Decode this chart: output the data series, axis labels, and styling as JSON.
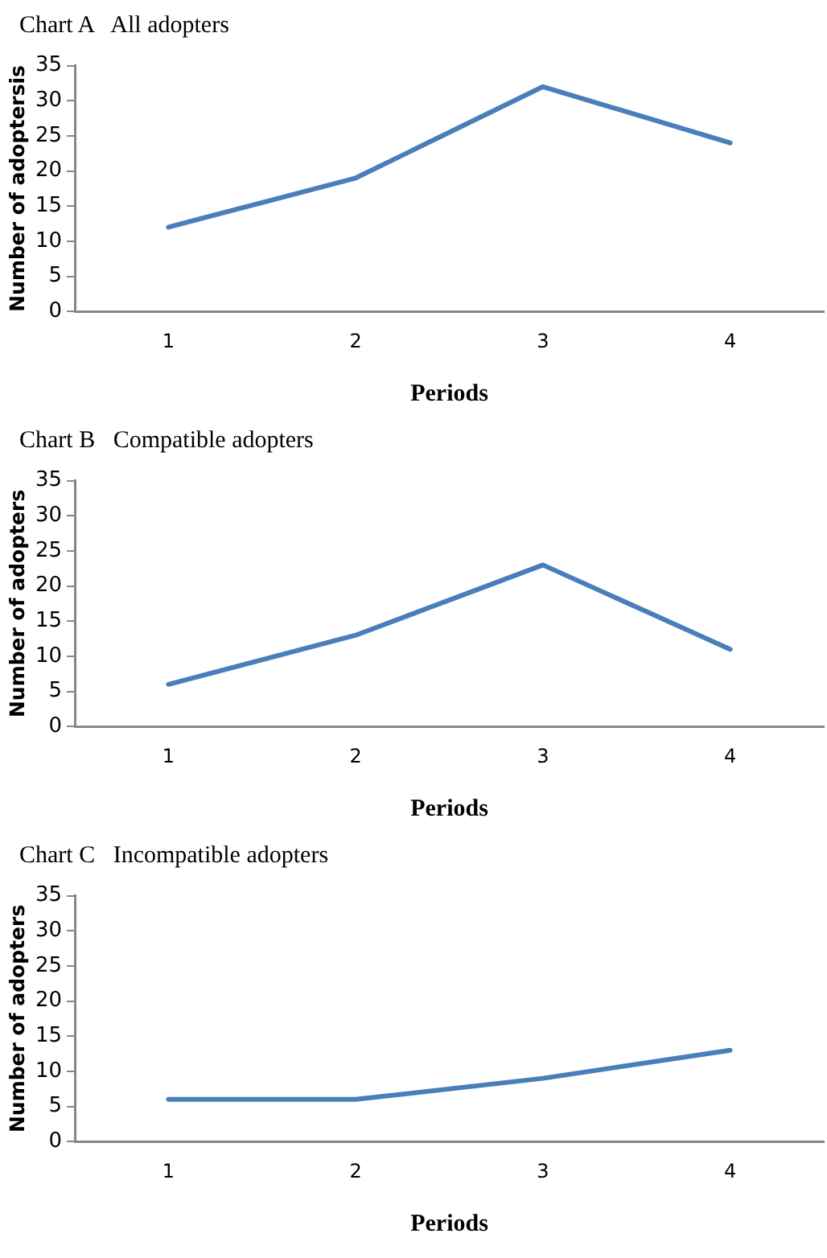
{
  "chart_data": [
    {
      "type": "line",
      "title": "Chart A   All adopters",
      "xlabel": "Periods",
      "ylabel": "Number of adoptersis",
      "categories": [
        "1",
        "2",
        "3",
        "4"
      ],
      "series": [
        {
          "color": "#4a7ebb",
          "values": [
            12,
            19,
            32,
            24
          ]
        }
      ],
      "ylim": [
        0,
        35
      ],
      "yticks": [
        0,
        5,
        10,
        15,
        20,
        25,
        30,
        35
      ],
      "grid": false,
      "marker": "none"
    },
    {
      "type": "line",
      "title": "Chart B   Compatible adopters",
      "xlabel": "Periods",
      "ylabel": "Number of adopters",
      "categories": [
        "1",
        "2",
        "3",
        "4"
      ],
      "series": [
        {
          "color": "#4a7ebb",
          "values": [
            6,
            13,
            23,
            11
          ]
        }
      ],
      "ylim": [
        0,
        35
      ],
      "yticks": [
        0,
        5,
        10,
        15,
        20,
        25,
        30,
        35
      ],
      "grid": false,
      "marker": "none"
    },
    {
      "type": "line",
      "title": "Chart C   Incompatible adopters",
      "xlabel": "Periods",
      "ylabel": "Number of adopters",
      "categories": [
        "1",
        "2",
        "3",
        "4"
      ],
      "series": [
        {
          "color": "#4a7ebb",
          "values": [
            6,
            6,
            9,
            13
          ]
        }
      ],
      "ylim": [
        0,
        35
      ],
      "yticks": [
        0,
        5,
        10,
        15,
        20,
        25,
        30,
        35
      ],
      "grid": false,
      "marker": "none"
    }
  ]
}
